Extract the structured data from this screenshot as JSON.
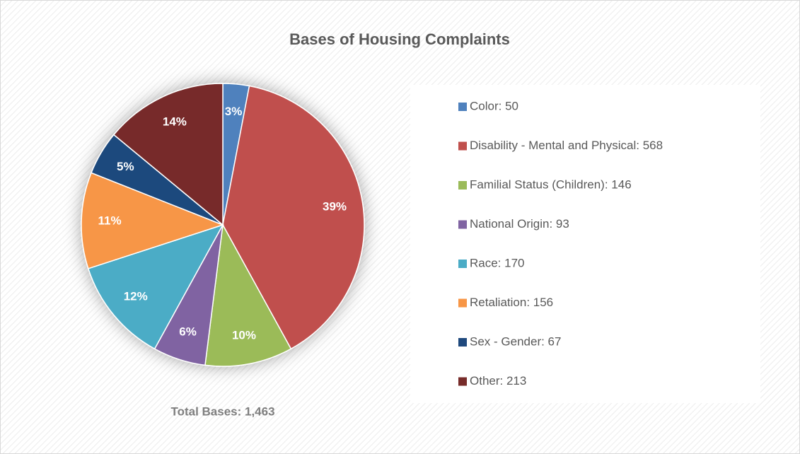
{
  "chart_data": {
    "type": "pie",
    "title": "Bases of Housing Complaints",
    "categories": [
      "Color: 50",
      "Disability - Mental and Physical: 568",
      "Familial Status (Children): 146",
      "National Origin: 93",
      "Race: 170",
      "Retaliation: 156",
      "Sex - Gender: 67",
      "Other: 213"
    ],
    "values": [
      3,
      39,
      10,
      6,
      12,
      11,
      5,
      14
    ],
    "value_labels": [
      "3%",
      "39%",
      "10%",
      "6%",
      "12%",
      "11%",
      "5%",
      "14%"
    ],
    "colors": [
      "#4f81bd",
      "#c0504d",
      "#9bbb59",
      "#8064a2",
      "#4bacc6",
      "#f79646",
      "#1f497d",
      "#772c2a"
    ],
    "annotation": "Total Bases: 1,463",
    "legend": "right"
  }
}
